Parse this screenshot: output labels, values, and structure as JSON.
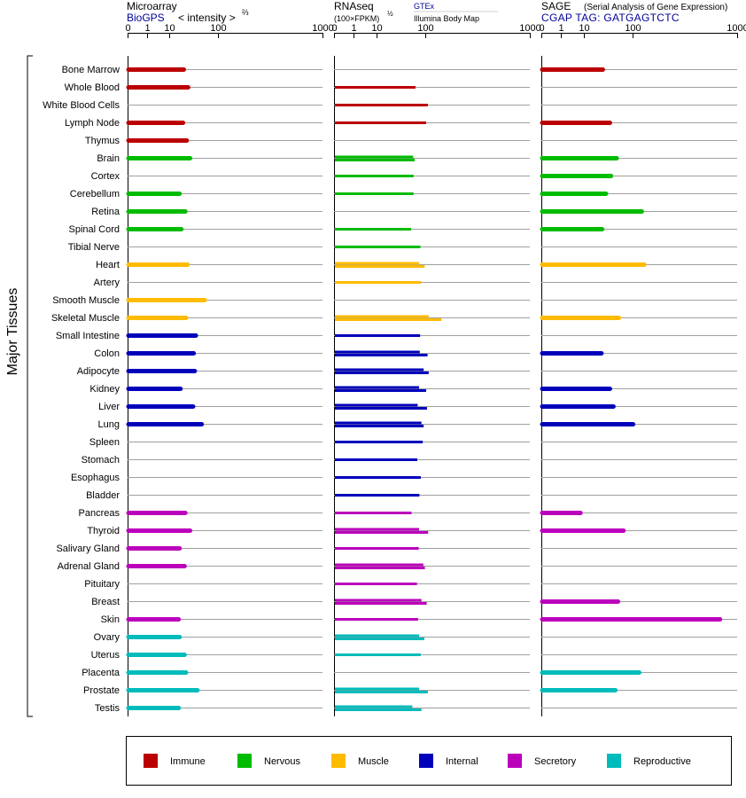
{
  "colors": {
    "immune": "#bb0000",
    "nervous": "#00bb00",
    "muscle": "#ffbb00",
    "internal": "#0000bb",
    "secretory": "#bb00bb",
    "reproductive": "#00bbbb",
    "title_link": "#000099",
    "grid": "#a0a0a0"
  },
  "y_axis_title": "Major Tissues",
  "panels": {
    "microarray": {
      "title": "Microarray",
      "link": "BioGPS",
      "unit_main": "< intensity >",
      "unit_exp": "⅔",
      "ticks": [
        "0",
        "1",
        "10",
        "100",
        "1000"
      ]
    },
    "rnaseq": {
      "title": "RNAseq",
      "unit_main": "(100×FPKM)",
      "unit_exp": "½",
      "link": "GTEx",
      "subtitle": "Illumina Body Map",
      "ticks": [
        "0",
        "1",
        "10",
        "100",
        "1000"
      ]
    },
    "sage": {
      "title": "SAGE",
      "subtitle": "(Serial Analysis of Gene Expression)",
      "link": "CGAP TAG: GATGAGTCTC",
      "ticks": [
        "0",
        "1",
        "10",
        "100",
        "1000"
      ]
    }
  },
  "legend": [
    {
      "key": "immune",
      "label": "Immune"
    },
    {
      "key": "nervous",
      "label": "Nervous"
    },
    {
      "key": "muscle",
      "label": "Muscle"
    },
    {
      "key": "internal",
      "label": "Internal"
    },
    {
      "key": "secretory",
      "label": "Secretory"
    },
    {
      "key": "reproductive",
      "label": "Reproductive"
    }
  ],
  "chart_data": {
    "type": "bar",
    "scale": "tick labels 0, 1, 10, 100, 1000 (power-compressed axis)",
    "tissues": [
      {
        "name": "Bone Marrow",
        "group": "immune",
        "microarray": 24,
        "rnaseq": [],
        "sage": 31
      },
      {
        "name": "Whole Blood",
        "group": "immune",
        "microarray": 30,
        "rnaseq": [
          72
        ],
        "sage": null
      },
      {
        "name": "White Blood Cells",
        "group": "immune",
        "microarray": null,
        "rnaseq": [
          110
        ],
        "sage": null
      },
      {
        "name": "Lymph Node",
        "group": "immune",
        "microarray": 23,
        "rnaseq": [
          104
        ],
        "sage": 43
      },
      {
        "name": "Thymus",
        "group": "immune",
        "microarray": 28,
        "rnaseq": [],
        "sage": null
      },
      {
        "name": "Brain",
        "group": "nervous",
        "microarray": 33,
        "rnaseq": [
          66,
          70
        ],
        "sage": 57
      },
      {
        "name": "Cortex",
        "group": "nervous",
        "microarray": null,
        "rnaseq": [
          67
        ],
        "sage": 45
      },
      {
        "name": "Cerebellum",
        "group": "nervous",
        "microarray": 19,
        "rnaseq": [
          67
        ],
        "sage": 36
      },
      {
        "name": "Retina",
        "group": "nervous",
        "microarray": 26,
        "rnaseq": [],
        "sage": 135
      },
      {
        "name": "Spinal Cord",
        "group": "nervous",
        "microarray": 21,
        "rnaseq": [
          61
        ],
        "sage": 30
      },
      {
        "name": "Tibial Nerve",
        "group": "nervous",
        "microarray": null,
        "rnaseq": [
          86
        ],
        "sage": null
      },
      {
        "name": "Heart",
        "group": "muscle",
        "microarray": 29,
        "rnaseq": [
          82,
          99
        ],
        "sage": 145
      },
      {
        "name": "Artery",
        "group": "muscle",
        "microarray": null,
        "rnaseq": [
          88
        ],
        "sage": null
      },
      {
        "name": "Smooth Muscle",
        "group": "muscle",
        "microarray": 62,
        "rnaseq": [],
        "sage": null
      },
      {
        "name": "Skeletal Muscle",
        "group": "muscle",
        "microarray": 27,
        "rnaseq": [
          113,
          165
        ],
        "sage": 62
      },
      {
        "name": "Small Intestine",
        "group": "internal",
        "microarray": 43,
        "rnaseq": [
          85
        ],
        "sage": null
      },
      {
        "name": "Colon",
        "group": "internal",
        "microarray": 39,
        "rnaseq": [
          84,
          109
        ],
        "sage": 29
      },
      {
        "name": "Adipocyte",
        "group": "internal",
        "microarray": 41,
        "rnaseq": [
          96,
          113
        ],
        "sage": null
      },
      {
        "name": "Kidney",
        "group": "internal",
        "microarray": 20,
        "rnaseq": [
          82,
          104
        ],
        "sage": 43
      },
      {
        "name": "Liver",
        "group": "internal",
        "microarray": 38,
        "rnaseq": [
          78,
          107
        ],
        "sage": 50
      },
      {
        "name": "Lung",
        "group": "internal",
        "microarray": 55,
        "rnaseq": [
          89,
          96
        ],
        "sage": 103
      },
      {
        "name": "Spleen",
        "group": "internal",
        "microarray": null,
        "rnaseq": [
          93
        ],
        "sage": null
      },
      {
        "name": "Stomach",
        "group": "internal",
        "microarray": null,
        "rnaseq": [
          77
        ],
        "sage": null
      },
      {
        "name": "Esophagus",
        "group": "internal",
        "microarray": null,
        "rnaseq": [
          87
        ],
        "sage": null
      },
      {
        "name": "Bladder",
        "group": "internal",
        "microarray": null,
        "rnaseq": [
          83
        ],
        "sage": null
      },
      {
        "name": "Pancreas",
        "group": "secretory",
        "microarray": 26,
        "rnaseq": [
          62
        ],
        "sage": 8
      },
      {
        "name": "Thyroid",
        "group": "secretory",
        "microarray": 33,
        "rnaseq": [
          82,
          111
        ],
        "sage": 74
      },
      {
        "name": "Salivary Gland",
        "group": "secretory",
        "microarray": 19,
        "rnaseq": [
          81
        ],
        "sage": null
      },
      {
        "name": "Adrenal Gland",
        "group": "secretory",
        "microarray": 25,
        "rnaseq": [
          95,
          100
        ],
        "sage": null
      },
      {
        "name": "Pituitary",
        "group": "secretory",
        "microarray": null,
        "rnaseq": [
          76
        ],
        "sage": null
      },
      {
        "name": "Breast",
        "group": "secretory",
        "microarray": null,
        "rnaseq": [
          89,
          106
        ],
        "sage": 60
      },
      {
        "name": "Skin",
        "group": "secretory",
        "microarray": 18,
        "rnaseq": [
          79
        ],
        "sage": 760
      },
      {
        "name": "Ovary",
        "group": "reproductive",
        "microarray": 19,
        "rnaseq": [
          82,
          98
        ],
        "sage": null
      },
      {
        "name": "Uterus",
        "group": "reproductive",
        "microarray": 25,
        "rnaseq": [
          87
        ],
        "sage": null
      },
      {
        "name": "Placenta",
        "group": "reproductive",
        "microarray": 27,
        "rnaseq": [],
        "sage": 125
      },
      {
        "name": "Prostate",
        "group": "reproductive",
        "microarray": 46,
        "rnaseq": [
          82,
          110
        ],
        "sage": 54
      },
      {
        "name": "Testis",
        "group": "reproductive",
        "microarray": 18,
        "rnaseq": [
          64,
          89
        ],
        "sage": null
      }
    ]
  }
}
